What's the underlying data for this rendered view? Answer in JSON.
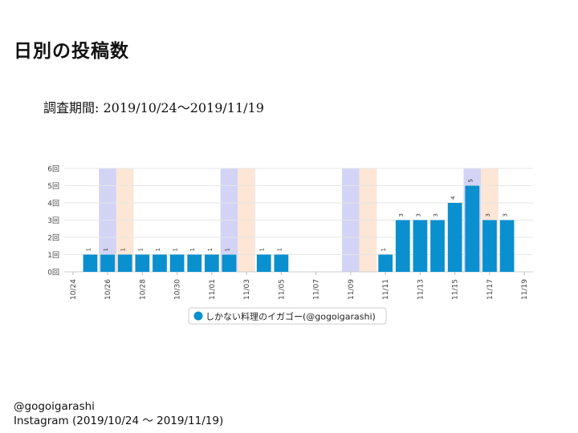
{
  "page": {
    "title": "日別の投稿数",
    "period": "調査期間: 2019/10/24〜2019/11/19"
  },
  "footer": {
    "account": "@gogoigarashi",
    "source": "Instagram (2019/10/24 〜 2019/11/19)"
  },
  "colors": {
    "bar": "#0a8fcf",
    "saturday": "#d3d3f5",
    "sunday": "#fde6d6",
    "grid": "#e6e6e6"
  },
  "chart_data": {
    "type": "bar",
    "title": "",
    "dates": [
      "10/24",
      "10/25",
      "10/26",
      "10/27",
      "10/28",
      "10/29",
      "10/30",
      "10/31",
      "11/01",
      "11/02",
      "11/03",
      "11/04",
      "11/05",
      "11/06",
      "11/07",
      "11/08",
      "11/09",
      "11/10",
      "11/11",
      "11/12",
      "11/13",
      "11/14",
      "11/15",
      "11/16",
      "11/17",
      "11/18",
      "11/19"
    ],
    "x_tick_labels": [
      "10/24",
      "10/26",
      "10/28",
      "10/30",
      "11/01",
      "11/03",
      "11/05",
      "11/07",
      "11/09",
      "11/11",
      "11/13",
      "11/15",
      "11/17",
      "11/19"
    ],
    "series": [
      {
        "name": "しかない料理のイガゴー(@gogoigarashi)",
        "values": [
          0,
          1,
          1,
          1,
          1,
          1,
          1,
          1,
          1,
          1,
          0,
          1,
          1,
          0,
          0,
          0,
          0,
          0,
          1,
          3,
          3,
          3,
          4,
          5,
          3,
          3,
          0
        ]
      }
    ],
    "ylim": [
      0,
      6
    ],
    "y_tick_labels": [
      "0回",
      "1回",
      "2回",
      "3回",
      "4回",
      "5回",
      "6回"
    ],
    "saturday_dates": [
      "10/26",
      "11/02",
      "11/09",
      "11/16"
    ],
    "sunday_dates": [
      "10/27",
      "11/03",
      "11/10",
      "11/17"
    ],
    "legend": "bottom-center"
  }
}
